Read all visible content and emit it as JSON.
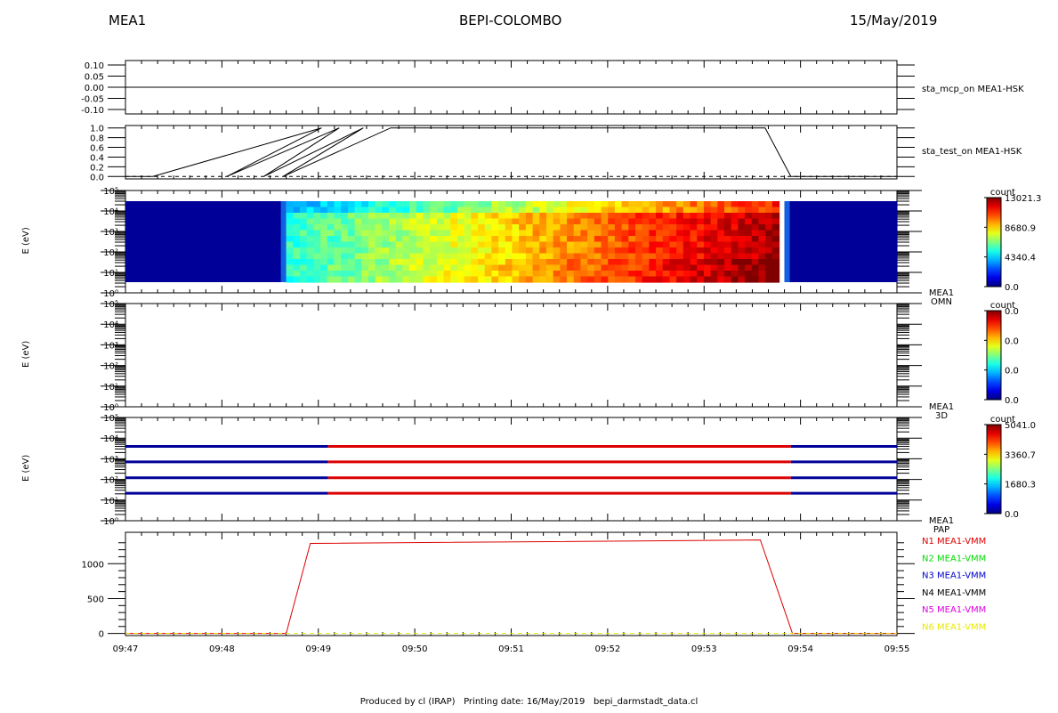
{
  "header": {
    "left": "MEA1",
    "center": "BEPI-COLOMBO",
    "right": "15/May/2019"
  },
  "footer": "Produced by cl (IRAP)   Printing date: 16/May/2019   bepi_darmstadt_data.cl",
  "chart_data": [
    {
      "type": "line",
      "label": "sta_mcp_on MEA1-HSK",
      "ytick_labels": [
        "0.10",
        "0.05",
        "0.00",
        "-0.05",
        "-0.10"
      ],
      "ylim": [
        -0.12,
        0.12
      ],
      "series": [
        {
          "x": [
            "09:47",
            "09:55"
          ],
          "values": [
            0,
            0
          ]
        }
      ]
    },
    {
      "type": "line",
      "label": "sta_test_on MEA1-HSK",
      "ytick_labels": [
        "1.0",
        "0.8",
        "0.6",
        "0.4",
        "0.2",
        "0.0"
      ],
      "ylim": [
        -0.05,
        1.05
      ],
      "series": [
        {
          "x": [
            "09:47",
            "09:47:17",
            "09:49:02",
            "09:48:03",
            "09:49:13",
            "09:48:26",
            "09:49:28",
            "09:48:38",
            "09:49:45",
            "09:53:38",
            "09:53:54",
            "09:55"
          ],
          "values": [
            0,
            0,
            1,
            0,
            1,
            0,
            1,
            0,
            1,
            1,
            0,
            0
          ]
        }
      ]
    },
    {
      "type": "heatmap",
      "label": "MEA1 OMN",
      "ylabel": "E (eV)",
      "yscale": "log",
      "ytick_labels": [
        "10⁵",
        "10⁴",
        "10³",
        "10²",
        "10¹",
        "10⁰"
      ],
      "colorbar": {
        "title": "count",
        "ticks": [
          "13021.3",
          "8680.9",
          "4340.4",
          "0.0"
        ]
      }
    },
    {
      "type": "heatmap",
      "label": "MEA1 3D",
      "ylabel": "E (eV)",
      "yscale": "log",
      "ytick_labels": [
        "10⁵",
        "10⁴",
        "10³",
        "10²",
        "10¹",
        "10⁰"
      ],
      "colorbar": {
        "title": "count",
        "ticks": [
          "0.0",
          "0.0",
          "0.0",
          "0.0"
        ]
      }
    },
    {
      "type": "heatmap",
      "label": "MEA1 PAP",
      "ylabel": "E (eV)",
      "yscale": "log",
      "ytick_labels": [
        "10⁵",
        "10⁴",
        "10³",
        "10²",
        "10¹",
        "10⁰"
      ],
      "colorbar": {
        "title": "count",
        "ticks": [
          "5041.0",
          "3360.7",
          "1680.3",
          "0.0"
        ]
      }
    },
    {
      "type": "line",
      "ytick_labels": [
        "1000",
        "500",
        "0"
      ],
      "ylim": [
        -30,
        1450
      ],
      "x_ticks": [
        "09:47",
        "09:48",
        "09:49",
        "09:50",
        "09:51",
        "09:52",
        "09:53",
        "09:54",
        "09:55"
      ],
      "series": [
        {
          "name": "N1 MEA1-VMM",
          "color": "#dd0000",
          "x": [
            "09:47",
            "09:48:40",
            "09:48:55",
            "09:53:35",
            "09:53:55",
            "09:55"
          ],
          "values": [
            0,
            0,
            1290,
            1340,
            0,
            0
          ]
        },
        {
          "name": "N2 MEA1-VMM",
          "color": "#00dd00"
        },
        {
          "name": "N3 MEA1-VMM",
          "color": "#0000cc"
        },
        {
          "name": "N4 MEA1-VMM",
          "color": "#000000"
        },
        {
          "name": "N5 MEA1-VMM",
          "color": "#dd00dd"
        },
        {
          "name": "N6 MEA1-VMM",
          "color": "#e8e800",
          "x": [
            "09:47",
            "09:55"
          ],
          "values": [
            0,
            0
          ]
        }
      ]
    }
  ]
}
